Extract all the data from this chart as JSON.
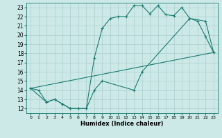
{
  "xlabel": "Humidex (Indice chaleur)",
  "xlim": [
    -0.5,
    23.5
  ],
  "ylim": [
    11.5,
    23.5
  ],
  "yticks": [
    12,
    13,
    14,
    15,
    16,
    17,
    18,
    19,
    20,
    21,
    22,
    23
  ],
  "xticks": [
    0,
    1,
    2,
    3,
    4,
    5,
    6,
    7,
    8,
    9,
    10,
    11,
    12,
    13,
    14,
    15,
    16,
    17,
    18,
    19,
    20,
    21,
    22,
    23
  ],
  "bg_color": "#cce9e7",
  "grid_color": "#aacfcc",
  "line_color": "#1a7a6e",
  "line1_x": [
    0,
    1,
    2,
    3,
    4,
    5,
    6,
    7,
    8,
    9,
    10,
    11,
    12,
    13,
    14,
    15,
    16,
    17,
    18,
    19,
    20,
    21,
    22,
    23
  ],
  "line1_y": [
    14.2,
    14.0,
    12.7,
    13.0,
    12.5,
    12.0,
    12.0,
    12.0,
    17.5,
    20.7,
    21.8,
    22.0,
    22.0,
    23.2,
    23.2,
    22.3,
    23.2,
    22.2,
    22.1,
    23.0,
    21.8,
    21.5,
    19.8,
    18.1
  ],
  "line2_x": [
    0,
    2,
    3,
    4,
    5,
    6,
    7,
    8,
    9,
    13,
    14,
    20,
    22,
    23
  ],
  "line2_y": [
    14.2,
    12.7,
    13.0,
    12.5,
    12.0,
    12.0,
    12.0,
    14.0,
    15.0,
    14.0,
    16.0,
    21.8,
    21.5,
    18.1
  ],
  "line3_x": [
    0,
    23
  ],
  "line3_y": [
    14.2,
    18.1
  ]
}
